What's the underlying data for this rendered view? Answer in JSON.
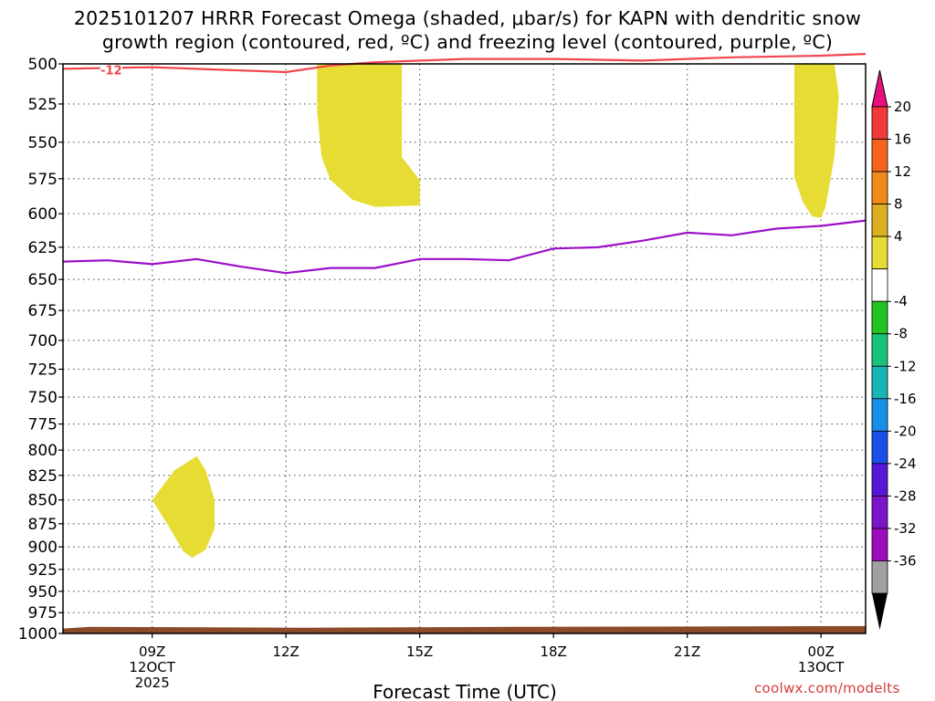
{
  "header": {
    "title_line1": "2025101207 HRRR Forecast Omega (shaded, μbar/s) for KAPN with dendritic snow",
    "title_line2": "growth region (contoured, red, ºC) and freezing level (contoured, purple, ºC)"
  },
  "footer": {
    "credit": "coolwx.com/modelts"
  },
  "chart_data": {
    "type": "heatmap",
    "xlabel": "Forecast Time (UTC)",
    "x_ticks": [
      {
        "hour": 9,
        "lines": [
          "09Z",
          "12OCT",
          "2025"
        ]
      },
      {
        "hour": 12,
        "lines": [
          "12Z"
        ]
      },
      {
        "hour": 15,
        "lines": [
          "15Z"
        ]
      },
      {
        "hour": 18,
        "lines": [
          "18Z"
        ]
      },
      {
        "hour": 21,
        "lines": [
          "21Z"
        ]
      },
      {
        "hour": 24,
        "lines": [
          "00Z",
          "13OCT"
        ]
      }
    ],
    "xlim": [
      7.0,
      25.0
    ],
    "y_ticks": [
      500,
      525,
      550,
      575,
      600,
      625,
      650,
      675,
      700,
      725,
      750,
      775,
      800,
      825,
      850,
      875,
      900,
      925,
      950,
      975,
      1000
    ],
    "ylim": [
      500,
      1000
    ],
    "grid": true,
    "dgz_label": "-12",
    "dgz_contour": [
      [
        7,
        503
      ],
      [
        9,
        502
      ],
      [
        12,
        505
      ],
      [
        13,
        501
      ],
      [
        14,
        499
      ],
      [
        16,
        497
      ],
      [
        18,
        497
      ],
      [
        20,
        498
      ],
      [
        22,
        496
      ],
      [
        24,
        495
      ],
      [
        25,
        494
      ]
    ],
    "freezing_level": [
      [
        7,
        636
      ],
      [
        8,
        635
      ],
      [
        9,
        638
      ],
      [
        10,
        634
      ],
      [
        11,
        640
      ],
      [
        12,
        645
      ],
      [
        13,
        641
      ],
      [
        14,
        641
      ],
      [
        15,
        634
      ],
      [
        16,
        634
      ],
      [
        17,
        635
      ],
      [
        18,
        626
      ],
      [
        19,
        625
      ],
      [
        20,
        620
      ],
      [
        21,
        614
      ],
      [
        22,
        616
      ],
      [
        23,
        611
      ],
      [
        24,
        609
      ],
      [
        25,
        605
      ]
    ],
    "omega_regions": [
      {
        "value_range": "4 to 8",
        "polygon": [
          [
            12.7,
            500
          ],
          [
            14.6,
            500
          ],
          [
            14.6,
            560
          ],
          [
            15.0,
            576
          ],
          [
            15.0,
            594
          ],
          [
            14.0,
            595
          ],
          [
            13.5,
            590
          ],
          [
            13.0,
            576
          ],
          [
            12.8,
            560
          ],
          [
            12.7,
            530
          ]
        ]
      },
      {
        "value_range": "4 to 8",
        "polygon": [
          [
            23.4,
            500
          ],
          [
            24.3,
            500
          ],
          [
            24.4,
            520
          ],
          [
            24.3,
            560
          ],
          [
            24.1,
            595
          ],
          [
            24.0,
            603
          ],
          [
            23.8,
            602
          ],
          [
            23.6,
            592
          ],
          [
            23.4,
            574
          ],
          [
            23.4,
            540
          ]
        ]
      },
      {
        "value_range": "4 to 8",
        "polygon": [
          [
            10.0,
            806
          ],
          [
            10.2,
            820
          ],
          [
            10.4,
            850
          ],
          [
            10.4,
            880
          ],
          [
            10.2,
            903
          ],
          [
            9.9,
            912
          ],
          [
            9.7,
            905
          ],
          [
            9.4,
            880
          ],
          [
            9.0,
            850
          ],
          [
            9.5,
            820
          ]
        ]
      }
    ],
    "surface": [
      [
        7,
        994
      ],
      [
        7.6,
        992
      ],
      [
        12.4,
        993
      ],
      [
        17,
        992
      ],
      [
        25,
        991
      ]
    ],
    "colorbar": {
      "labels": [
        "20",
        "16",
        "12",
        "8",
        "4",
        "-4",
        "-8",
        "-12",
        "-16",
        "-20",
        "-24",
        "-28",
        "-32",
        "-36"
      ],
      "top_cap_color": "#e8107f",
      "bottom_cap_color": "#000000",
      "bins": [
        "#f23a3a",
        "#f3651c",
        "#f08a1c",
        "#dcae22",
        "#e6dc34",
        "#ffffff",
        "#20c320",
        "#18c278",
        "#1ab4b4",
        "#178ee8",
        "#1c4fe8",
        "#5618d6",
        "#7c14c8",
        "#9d0cbc",
        "#a0a0a0"
      ]
    },
    "colors": {
      "dgz": "#f2454d",
      "freezing_level": "#9b10c8",
      "omega_fill": "#e6dc34",
      "surface": "#8b4a28",
      "axis_labels": "#000000"
    }
  }
}
